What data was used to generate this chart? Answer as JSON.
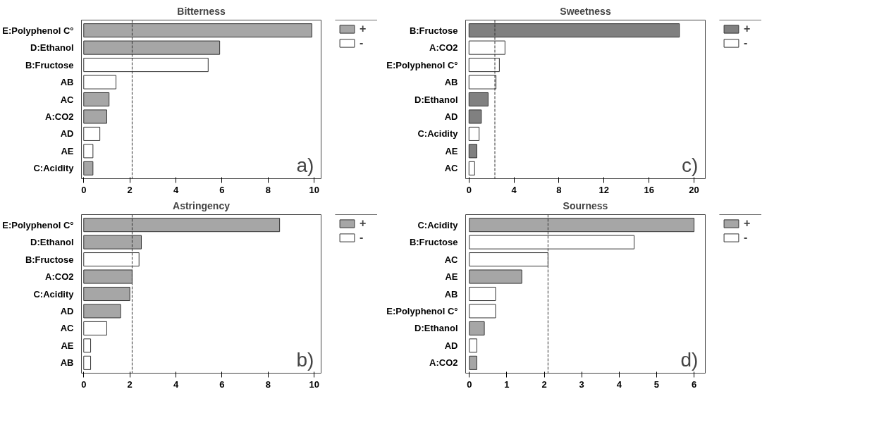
{
  "chart_data": [
    {
      "type": "bar",
      "orientation": "horizontal",
      "title": "Bitterness",
      "categories": [
        "E:Polyphenol C°",
        "D:Ethanol",
        "B:Fructose",
        "AB",
        "AC",
        "A:CO2",
        "AD",
        "AE",
        "C:Acidity"
      ],
      "series": [
        {
          "name": "+",
          "color": "#a6a6a6",
          "values": [
            9.9,
            5.9,
            null,
            null,
            1.1,
            1.0,
            null,
            null,
            0.4
          ]
        },
        {
          "name": "-",
          "color": "#ffffff",
          "values": [
            null,
            null,
            5.4,
            1.4,
            null,
            null,
            0.7,
            0.4,
            null
          ]
        }
      ],
      "xlim": [
        -0.1,
        10.3
      ],
      "xticks": [
        0,
        2,
        4,
        6,
        8,
        10
      ],
      "ref_lines": [
        {
          "axis": "x",
          "value": 2.1
        }
      ],
      "grid": false,
      "legend": "right",
      "annotations": [
        "a)"
      ]
    },
    {
      "type": "bar",
      "orientation": "horizontal",
      "title": "Sweetness",
      "categories": [
        "B:Fructose",
        "A:CO2",
        "E:Polyphenol C°",
        "AB",
        "D:Ethanol",
        "AD",
        "C:Acidity",
        "AE",
        "AC"
      ],
      "series": [
        {
          "name": "+",
          "color": "#808080",
          "values": [
            18.7,
            null,
            null,
            null,
            1.7,
            1.1,
            null,
            0.7,
            null
          ]
        },
        {
          "name": "-",
          "color": "#ffffff",
          "values": [
            null,
            3.2,
            2.7,
            2.4,
            null,
            null,
            0.9,
            null,
            0.5
          ]
        }
      ],
      "xlim": [
        -0.3,
        21
      ],
      "xticks": [
        0,
        4,
        8,
        12,
        16,
        20
      ],
      "ref_lines": [
        {
          "axis": "x",
          "value": 2.3
        }
      ],
      "grid": false,
      "legend": "right",
      "annotations": [
        "c)"
      ]
    },
    {
      "type": "bar",
      "orientation": "horizontal",
      "title": "Astringency",
      "categories": [
        "E:Polyphenol C°",
        "D:Ethanol",
        "B:Fructose",
        "A:CO2",
        "C:Acidity",
        "AD",
        "AC",
        "AE",
        "AB"
      ],
      "series": [
        {
          "name": "+",
          "color": "#a6a6a6",
          "values": [
            8.5,
            2.5,
            null,
            2.1,
            2.0,
            1.6,
            null,
            null,
            null
          ]
        },
        {
          "name": "-",
          "color": "#ffffff",
          "values": [
            null,
            null,
            2.4,
            null,
            null,
            null,
            1.0,
            0.3,
            0.3
          ]
        }
      ],
      "xlim": [
        -0.1,
        10.3
      ],
      "xticks": [
        0,
        2,
        4,
        6,
        8,
        10
      ],
      "ref_lines": [
        {
          "axis": "x",
          "value": 2.1
        }
      ],
      "grid": false,
      "legend": "right",
      "annotations": [
        "b)"
      ]
    },
    {
      "type": "bar",
      "orientation": "horizontal",
      "title": "Sourness",
      "categories": [
        "C:Acidity",
        "B:Fructose",
        "AC",
        "AE",
        "AB",
        "E:Polyphenol C°",
        "D:Ethanol",
        "AD",
        "A:CO2"
      ],
      "series": [
        {
          "name": "+",
          "color": "#a6a6a6",
          "values": [
            6.0,
            null,
            null,
            1.4,
            null,
            null,
            0.4,
            null,
            0.2
          ]
        },
        {
          "name": "-",
          "color": "#ffffff",
          "values": [
            null,
            4.4,
            2.1,
            null,
            0.7,
            0.7,
            null,
            0.2,
            null
          ]
        }
      ],
      "xlim": [
        -0.1,
        6.3
      ],
      "xticks": [
        0,
        1,
        2,
        3,
        4,
        5,
        6
      ],
      "ref_lines": [
        {
          "axis": "x",
          "value": 2.1
        }
      ],
      "grid": false,
      "legend": "right",
      "annotations": [
        "d)"
      ]
    }
  ]
}
